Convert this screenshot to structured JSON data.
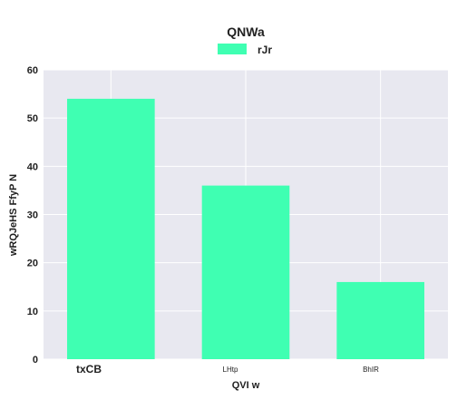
{
  "chart_data": {
    "type": "bar",
    "title": "QNWa",
    "xlabel": "QVI w",
    "ylabel": "wRQJeHS FfyP N",
    "categories": [
      "txCB",
      "LHtp",
      "BhIR"
    ],
    "series": [
      {
        "name": "rJr",
        "values": [
          54,
          36,
          16
        ],
        "color": "#3fffb2"
      }
    ],
    "ylim": [
      0,
      60
    ],
    "yticks": [
      0,
      10,
      20,
      30,
      40,
      50,
      60
    ],
    "grid": true,
    "legend_position": "top-center",
    "colors": {
      "plot_background": "#e8e8f0",
      "grid": "#ffffff",
      "bar": "#3fffb2"
    }
  }
}
